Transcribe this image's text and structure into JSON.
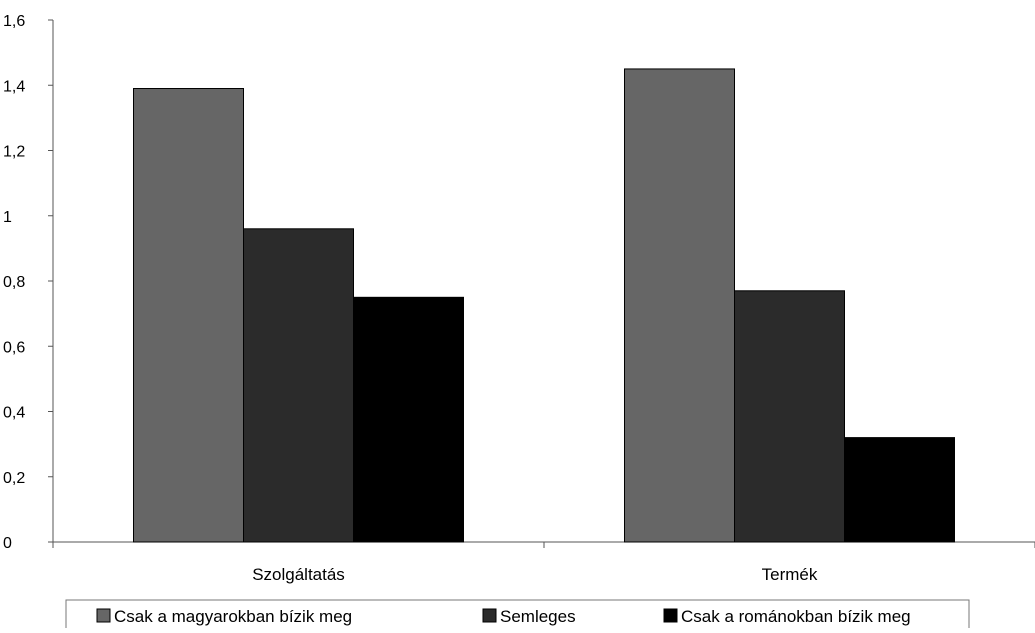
{
  "chart_data": {
    "type": "bar",
    "title": "",
    "xlabel": "",
    "ylabel": "",
    "categories": [
      "Szolgáltatás",
      "Termék"
    ],
    "series": [
      {
        "name": "Csak a magyarokban bízik meg",
        "values": [
          1.39,
          1.45
        ],
        "color": "#666666"
      },
      {
        "name": "Semleges",
        "values": [
          0.96,
          0.77
        ],
        "color": "#2b2b2b"
      },
      {
        "name": "Csak a románokban bízik meg",
        "values": [
          0.75,
          0.32
        ],
        "color": "#000000"
      }
    ],
    "ylim": [
      0,
      1.6
    ],
    "yticks": [
      0,
      0.2,
      0.4,
      0.6,
      0.8,
      1,
      1.2,
      1.4,
      1.6
    ],
    "ytick_labels": [
      "0",
      "0,2",
      "0,4",
      "0,6",
      "0,8",
      "1",
      "1,2",
      "1,4",
      "1,6"
    ],
    "grid": false,
    "legend_position": "bottom"
  }
}
